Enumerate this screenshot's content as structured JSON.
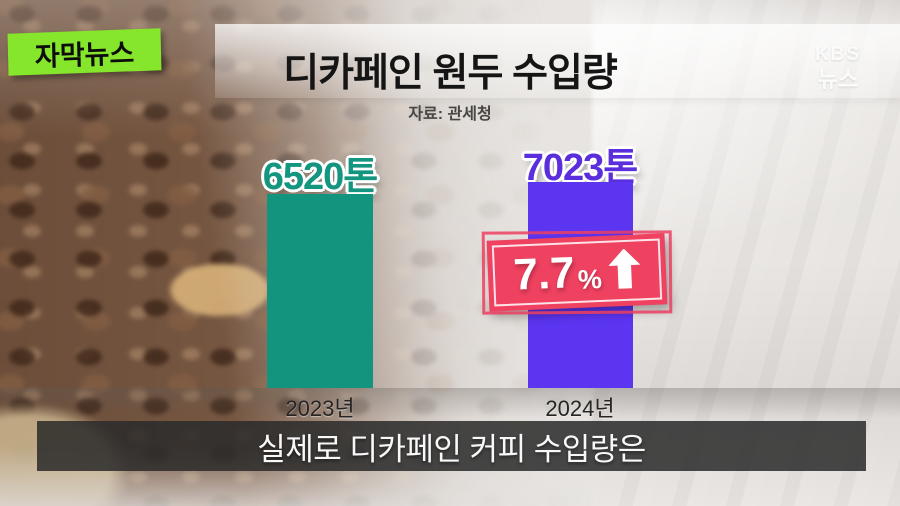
{
  "program_badge": {
    "label": "자막뉴스"
  },
  "watermark": {
    "line1": "KBS",
    "line2": "뉴스"
  },
  "chart": {
    "title": "디카페인 원두 수입량",
    "source": "자료: 관세청",
    "bars": [
      {
        "year": "2023년",
        "value_label": "6520톤"
      },
      {
        "year": "2024년",
        "value_label": "7023톤"
      }
    ],
    "growth_badge": {
      "value": "7.7",
      "percent_sign": "%",
      "direction": "up"
    }
  },
  "caption": {
    "text": "실제로 디카페인 커피 수입량은"
  },
  "colors": {
    "bar_2023": "#12947E",
    "bar_2024": "#5B35F0",
    "growth_badge_bg": "#EF4160",
    "program_badge_bg": "#85E62C",
    "caption_bg": "rgba(43,43,43,0.86)"
  },
  "chart_data": {
    "type": "bar",
    "categories": [
      "2023년",
      "2024년"
    ],
    "values": [
      6520,
      7023
    ],
    "unit": "톤",
    "value_labels": [
      "6520톤",
      "7023톤"
    ],
    "title": "디카페인 원두 수입량",
    "source": "자료: 관세청",
    "xlabel": "",
    "ylabel": "",
    "ylim": [
      0,
      7400
    ],
    "grid": false,
    "legend": false,
    "bar_colors": [
      "#12947E",
      "#5B35F0"
    ],
    "annotations": [
      {
        "category": "2024년",
        "text": "7.7%↑",
        "meaning": "전년 대비 7.7% 증가"
      }
    ]
  }
}
